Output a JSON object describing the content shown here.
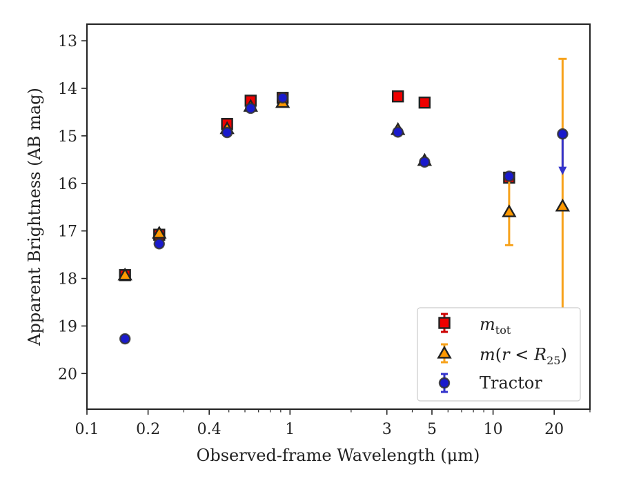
{
  "chart_data": {
    "type": "scatter",
    "xlabel": "Observed-frame Wavelength (μm)",
    "ylabel": "Apparent Brightness (AB mag)",
    "xscale": "log",
    "xlim": [
      0.1,
      30
    ],
    "ylim": [
      20.75,
      12.65
    ],
    "y_inverted": true,
    "grid": false,
    "legend_placement": "lower right",
    "x_ticks": [
      {
        "value": 0.1,
        "label": "0.1"
      },
      {
        "value": 0.2,
        "label": "0.2"
      },
      {
        "value": 0.4,
        "label": "0.4"
      },
      {
        "value": 1,
        "label": "1"
      },
      {
        "value": 3,
        "label": "3"
      },
      {
        "value": 5,
        "label": "5"
      },
      {
        "value": 10,
        "label": "10"
      },
      {
        "value": 20,
        "label": "20"
      }
    ],
    "x_minor_ticks": [
      0.3,
      0.5,
      0.6,
      0.7,
      0.8,
      0.9,
      2,
      4,
      6,
      7,
      8,
      9,
      30
    ],
    "y_ticks": [
      {
        "value": 13,
        "label": "13"
      },
      {
        "value": 14,
        "label": "14"
      },
      {
        "value": 15,
        "label": "15"
      },
      {
        "value": 16,
        "label": "16"
      },
      {
        "value": 17,
        "label": "17"
      },
      {
        "value": 18,
        "label": "18"
      },
      {
        "value": 19,
        "label": "19"
      },
      {
        "value": 20,
        "label": "20"
      }
    ],
    "series": [
      {
        "key": "mtot",
        "legend_label": "m_tot",
        "marker": "square",
        "face_color": "#ee0000",
        "edge_color": "#222222",
        "error_color": "#cc0000",
        "points": [
          {
            "x": 0.154,
            "y": 17.93
          },
          {
            "x": 0.227,
            "y": 17.08
          },
          {
            "x": 0.49,
            "y": 14.75
          },
          {
            "x": 0.64,
            "y": 14.26
          },
          {
            "x": 0.92,
            "y": 14.2
          },
          {
            "x": 3.4,
            "y": 14.17
          },
          {
            "x": 4.6,
            "y": 14.3
          },
          {
            "x": 12.0,
            "y": 15.88,
            "err": 0.08
          }
        ]
      },
      {
        "key": "m_r25",
        "legend_label": "m(r<R25)",
        "marker": "triangle",
        "face_color": "#ff9900",
        "edge_color": "#222222",
        "error_color": "#f7a21b",
        "points": [
          {
            "x": 0.154,
            "y": 17.93
          },
          {
            "x": 0.227,
            "y": 17.05
          },
          {
            "x": 0.49,
            "y": 14.85
          },
          {
            "x": 0.64,
            "y": 14.38
          },
          {
            "x": 0.92,
            "y": 14.3
          },
          {
            "x": 3.4,
            "y": 14.87
          },
          {
            "x": 4.6,
            "y": 15.52
          },
          {
            "x": 12.0,
            "y": 16.6,
            "err_low": 0.7,
            "err_high": 0.7
          },
          {
            "x": 22.0,
            "y": 16.48,
            "err_low": 3.1,
            "err_high": 3.1
          }
        ]
      },
      {
        "key": "tractor",
        "legend_label": "Tractor",
        "marker": "circle",
        "face_color": "#1a1acc",
        "edge_color": "#333333",
        "error_color": "#3333cc",
        "points": [
          {
            "x": 0.154,
            "y": 19.27
          },
          {
            "x": 0.227,
            "y": 17.27
          },
          {
            "x": 0.49,
            "y": 14.93
          },
          {
            "x": 0.64,
            "y": 14.42
          },
          {
            "x": 0.92,
            "y": 14.2
          },
          {
            "x": 3.4,
            "y": 14.92
          },
          {
            "x": 4.6,
            "y": 15.55
          },
          {
            "x": 12.0,
            "y": 15.85
          },
          {
            "x": 22.0,
            "y": 14.96,
            "upper_limit_arrow_to": 15.78
          }
        ]
      }
    ]
  }
}
